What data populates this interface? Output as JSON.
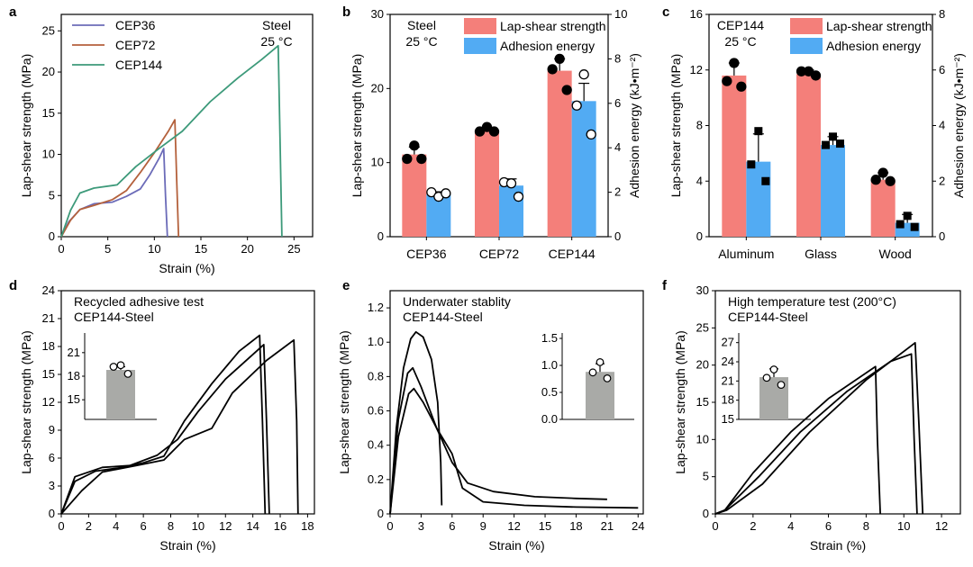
{
  "chart_data": [
    {
      "panel": "a",
      "type": "line",
      "xlabel": "Strain (%)",
      "ylabel": "Lap-shear strength (MPa)",
      "xlim": [
        0,
        27
      ],
      "ylim": [
        0,
        27
      ],
      "xticks": [
        0,
        5,
        10,
        15,
        20,
        25
      ],
      "yticks": [
        0,
        5,
        10,
        15,
        20,
        25
      ],
      "annotation": [
        "Steel",
        "25 °C"
      ],
      "legend_position": "top-left",
      "series": [
        {
          "name": "CEP36",
          "color": "#6b6bb8",
          "points": [
            [
              0,
              0
            ],
            [
              0.8,
              1.8
            ],
            [
              2,
              3.3
            ],
            [
              3.5,
              4.0
            ],
            [
              5.5,
              4.2
            ],
            [
              7,
              4.9
            ],
            [
              8.5,
              5.8
            ],
            [
              9.5,
              7.5
            ],
            [
              10.5,
              9.5
            ],
            [
              11,
              10.7
            ],
            [
              11.2,
              5
            ],
            [
              11.4,
              0
            ]
          ]
        },
        {
          "name": "CEP72",
          "color": "#b4613c",
          "points": [
            [
              0,
              0
            ],
            [
              1,
              2
            ],
            [
              2,
              3.3
            ],
            [
              3.5,
              3.8
            ],
            [
              5.5,
              4.5
            ],
            [
              7,
              5.6
            ],
            [
              8.5,
              7.8
            ],
            [
              10,
              10.2
            ],
            [
              11.5,
              12.8
            ],
            [
              12.2,
              14.2
            ],
            [
              12.4,
              7
            ],
            [
              12.6,
              0
            ]
          ]
        },
        {
          "name": "CEP144",
          "color": "#3d9a7a",
          "points": [
            [
              0,
              0
            ],
            [
              1,
              3.2
            ],
            [
              2,
              5.3
            ],
            [
              3.5,
              5.9
            ],
            [
              6,
              6.3
            ],
            [
              8,
              8.5
            ],
            [
              10.5,
              10.7
            ],
            [
              13,
              12.8
            ],
            [
              16,
              16.4
            ],
            [
              19,
              19.3
            ],
            [
              21.5,
              21.5
            ],
            [
              23.3,
              23.2
            ],
            [
              23.5,
              12
            ],
            [
              23.7,
              0
            ]
          ]
        }
      ]
    },
    {
      "panel": "b",
      "type": "bar",
      "categories": [
        "CEP36",
        "CEP72",
        "CEP144"
      ],
      "ylabel": "Lap-shear strength (MPa)",
      "y2label": "Adhesion energy (kJ•m⁻²)",
      "ylim": [
        0,
        30
      ],
      "y2lim": [
        0,
        10
      ],
      "yticks": [
        0,
        10,
        20,
        30
      ],
      "y2ticks": [
        0,
        2,
        4,
        6,
        8,
        10
      ],
      "annotation": [
        "Steel",
        "25 °C"
      ],
      "series": [
        {
          "name": "Lap-shear strength",
          "color": "#f47f7a",
          "axis": "left",
          "values": [
            11.1,
            14.3,
            22.4
          ],
          "errors": [
            1.0,
            0.4,
            1.6
          ],
          "points": [
            [
              12.3,
              10.5,
              10.5
            ],
            [
              14.8,
              14.2,
              14.2
            ],
            [
              24.0,
              22.6,
              19.8
            ]
          ],
          "marker": "filled-circle"
        },
        {
          "name": "Adhesion energy",
          "color": "#52abf3",
          "axis": "right",
          "values": [
            1.9,
            2.3,
            6.1
          ],
          "errors": [
            0.12,
            0.3,
            0.8
          ],
          "points": [
            [
              1.8,
              2.0,
              1.95
            ],
            [
              2.4,
              2.45,
              1.8
            ],
            [
              7.3,
              5.9,
              4.6
            ]
          ],
          "marker": "open-circle"
        }
      ]
    },
    {
      "panel": "c",
      "type": "bar",
      "categories": [
        "Aluminum",
        "Glass",
        "Wood"
      ],
      "ylabel": "Lap-shear strength (MPa)",
      "y2label": "Adhesion energy (kJ•m⁻²)",
      "ylim": [
        0,
        16
      ],
      "y2lim": [
        0,
        8
      ],
      "yticks": [
        0,
        4,
        8,
        12,
        16
      ],
      "y2ticks": [
        0,
        2,
        4,
        6,
        8
      ],
      "annotation": [
        "CEP144",
        "25 °C"
      ],
      "series": [
        {
          "name": "Lap-shear strength",
          "color": "#f47f7a",
          "axis": "left",
          "values": [
            11.6,
            11.7,
            4.1
          ],
          "errors": [
            0.9,
            0.3,
            0.5
          ],
          "points": [
            [
              12.5,
              11.2,
              10.8
            ],
            [
              11.9,
              11.9,
              11.6
            ],
            [
              4.6,
              4.1,
              4.0
            ]
          ],
          "marker": "filled-circle"
        },
        {
          "name": "Adhesion energy",
          "color": "#52abf3",
          "axis": "right",
          "values": [
            2.7,
            3.3,
            0.5
          ],
          "errors": [
            1.0,
            0.3,
            0.3
          ],
          "points": [
            [
              3.8,
              2.6,
              2.0
            ],
            [
              3.6,
              3.3,
              3.35
            ],
            [
              0.75,
              0.45,
              0.35
            ]
          ],
          "marker": "filled-square"
        }
      ]
    },
    {
      "panel": "d",
      "type": "line",
      "xlabel": "Strain (%)",
      "ylabel": "Lap-shear strength (MPa)",
      "xlim": [
        0,
        18.5
      ],
      "ylim": [
        0,
        24
      ],
      "xticks": [
        0,
        2,
        4,
        6,
        8,
        10,
        12,
        14,
        16,
        18
      ],
      "yticks": [
        0,
        3,
        6,
        9,
        12,
        15,
        18,
        21,
        24
      ],
      "annotation": [
        "Recycled adhesive test",
        "CEP144-Steel"
      ],
      "series": [
        {
          "name": "",
          "color": "#000000",
          "points": [
            [
              0,
              0
            ],
            [
              1,
              3.5
            ],
            [
              2.5,
              4.6
            ],
            [
              4.5,
              5.0
            ],
            [
              6,
              5.5
            ],
            [
              7.5,
              6.2
            ],
            [
              9,
              10
            ],
            [
              11,
              14
            ],
            [
              13,
              17.5
            ],
            [
              14.5,
              19.2
            ],
            [
              14.7,
              10
            ],
            [
              14.9,
              0
            ]
          ]
        },
        {
          "name": "",
          "color": "#000000",
          "points": [
            [
              0,
              0
            ],
            [
              1,
              4
            ],
            [
              3,
              5
            ],
            [
              5,
              5.2
            ],
            [
              7,
              6.3
            ],
            [
              8.5,
              8
            ],
            [
              10,
              11
            ],
            [
              12,
              14.5
            ],
            [
              14.8,
              18.2
            ],
            [
              15.0,
              10
            ],
            [
              15.2,
              0
            ]
          ]
        },
        {
          "name": "",
          "color": "#000000",
          "points": [
            [
              0,
              0
            ],
            [
              1.5,
              2.5
            ],
            [
              3,
              4.5
            ],
            [
              5.5,
              5.2
            ],
            [
              7.5,
              5.8
            ],
            [
              9,
              8
            ],
            [
              11,
              9.2
            ],
            [
              12.5,
              13
            ],
            [
              15,
              16.5
            ],
            [
              17.0,
              18.7
            ],
            [
              17.2,
              10
            ],
            [
              17.3,
              0
            ]
          ]
        }
      ],
      "inset": {
        "yticks": [
          15,
          18,
          21
        ],
        "ylim": [
          12.5,
          23.5
        ],
        "bar_value": 18.8,
        "error": 0.4,
        "bar_color": "#a9aaa7",
        "points": [
          19.2,
          19.4,
          18.3
        ]
      }
    },
    {
      "panel": "e",
      "type": "line",
      "xlabel": "Strain (%)",
      "ylabel": "Lap-shear strength (MPa)",
      "xlim": [
        0,
        24.5
      ],
      "ylim": [
        0,
        1.3
      ],
      "xticks": [
        0,
        3,
        6,
        9,
        12,
        15,
        18,
        21,
        24
      ],
      "yticks": [
        0,
        0.2,
        0.4,
        0.6,
        0.8,
        1.0,
        1.2
      ],
      "annotation": [
        "Underwater stablity",
        "CEP144-Steel"
      ],
      "series": [
        {
          "name": "",
          "color": "#000000",
          "points": [
            [
              0,
              0
            ],
            [
              0.6,
              0.5
            ],
            [
              1.3,
              0.85
            ],
            [
              2.0,
              1.02
            ],
            [
              2.5,
              1.06
            ],
            [
              3.2,
              1.03
            ],
            [
              4.0,
              0.9
            ],
            [
              4.6,
              0.65
            ],
            [
              4.9,
              0.3
            ],
            [
              5.0,
              0.05
            ]
          ]
        },
        {
          "name": "",
          "color": "#000000",
          "points": [
            [
              0,
              0
            ],
            [
              0.8,
              0.55
            ],
            [
              1.7,
              0.82
            ],
            [
              2.2,
              0.85
            ],
            [
              3.0,
              0.74
            ],
            [
              4.5,
              0.5
            ],
            [
              6,
              0.3
            ],
            [
              7.5,
              0.18
            ],
            [
              10,
              0.13
            ],
            [
              14,
              0.1
            ],
            [
              18,
              0.09
            ],
            [
              21,
              0.085
            ]
          ]
        },
        {
          "name": "",
          "color": "#000000",
          "points": [
            [
              0,
              0
            ],
            [
              0.8,
              0.45
            ],
            [
              1.8,
              0.7
            ],
            [
              2.3,
              0.73
            ],
            [
              3.2,
              0.65
            ],
            [
              4.5,
              0.5
            ],
            [
              6,
              0.35
            ],
            [
              7,
              0.15
            ],
            [
              9,
              0.07
            ],
            [
              13,
              0.05
            ],
            [
              18,
              0.04
            ],
            [
              24,
              0.035
            ]
          ]
        }
      ],
      "inset": {
        "yticks": [
          0.0,
          0.5,
          1.0,
          1.5
        ],
        "ylim": [
          0,
          1.6
        ],
        "bar_value": 0.88,
        "error": 0.15,
        "bar_color": "#a9aaa7",
        "points": [
          0.87,
          1.06,
          0.76
        ]
      }
    },
    {
      "panel": "f",
      "type": "line",
      "xlabel": "Strain (%)",
      "ylabel": "Lap-shear strength (MPa)",
      "xlim": [
        0,
        13
      ],
      "ylim": [
        0,
        30
      ],
      "xticks": [
        0,
        2,
        4,
        6,
        8,
        10,
        12
      ],
      "yticks": [
        0,
        5,
        10,
        15,
        20,
        25,
        30
      ],
      "annotation": [
        "High temperature test (200°C)",
        "CEP144-Steel"
      ],
      "series": [
        {
          "name": "",
          "color": "#000000",
          "points": [
            [
              0,
              0
            ],
            [
              0.5,
              0.5
            ],
            [
              2,
              5.5
            ],
            [
              4,
              11
            ],
            [
              6,
              15.5
            ],
            [
              8.5,
              19.8
            ],
            [
              8.6,
              10
            ],
            [
              8.75,
              0
            ]
          ]
        },
        {
          "name": "",
          "color": "#000000",
          "points": [
            [
              0,
              0
            ],
            [
              0.5,
              0.5
            ],
            [
              2.3,
              5
            ],
            [
              4.5,
              11
            ],
            [
              7,
              16.5
            ],
            [
              9.3,
              20.5
            ],
            [
              10.4,
              21.5
            ],
            [
              10.55,
              10
            ],
            [
              10.7,
              0
            ]
          ]
        },
        {
          "name": "",
          "color": "#000000",
          "points": [
            [
              0,
              0
            ],
            [
              0.6,
              0.5
            ],
            [
              2.5,
              4
            ],
            [
              5,
              11
            ],
            [
              8,
              18
            ],
            [
              10.6,
              23
            ],
            [
              10.8,
              12
            ],
            [
              11.0,
              0
            ]
          ]
        }
      ],
      "inset": {
        "yticks": [
          15,
          18,
          21,
          24,
          27
        ],
        "ylim": [
          15,
          28.5
        ],
        "bar_value": 21.6,
        "error": 1.3,
        "bar_color": "#a9aaa7",
        "points": [
          21.5,
          22.8,
          20.4
        ]
      }
    }
  ]
}
